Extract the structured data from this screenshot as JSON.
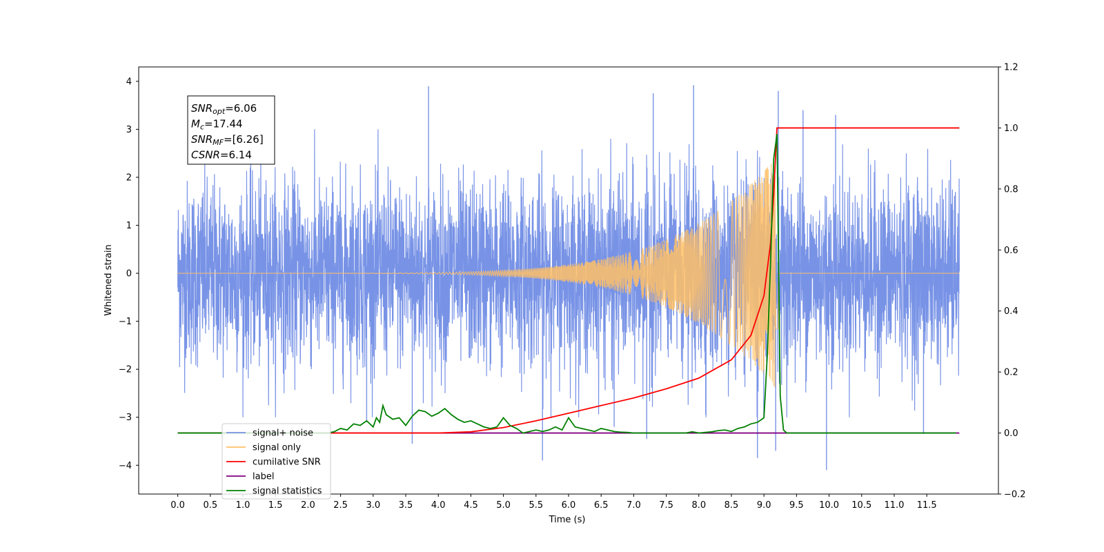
{
  "chart_data": {
    "type": "line",
    "xlabel": "Time (s)",
    "ylabel": "Whitened strain",
    "ylabel_right": "",
    "xlim": [
      -0.6,
      12.6
    ],
    "ylim": [
      -4.6,
      4.3
    ],
    "ylim_right": [
      -0.2,
      1.2
    ],
    "x_ticks": [
      0.0,
      0.5,
      1.0,
      1.5,
      2.0,
      2.5,
      3.0,
      3.5,
      4.0,
      4.5,
      5.0,
      5.5,
      6.0,
      6.5,
      7.0,
      7.5,
      8.0,
      8.5,
      9.0,
      9.5,
      10.0,
      10.5,
      11.0,
      11.5
    ],
    "x_tick_labels": [
      "0.0",
      "0.5",
      "1.0",
      "1.5",
      "2.0",
      "2.5",
      "3.0",
      "3.5",
      "4.0",
      "4.5",
      "5.0",
      "5.5",
      "6.0",
      "6.5",
      "7.0",
      "7.5",
      "8.0",
      "8.5",
      "9.0",
      "9.5",
      "10.0",
      "10.5",
      "11.0",
      "11.5"
    ],
    "y_ticks": [
      4,
      3,
      2,
      1,
      0,
      -1,
      -2,
      -3,
      -4
    ],
    "y_tick_labels": [
      "4",
      "3",
      "2",
      "1",
      "0",
      "−1",
      "−2",
      "−3",
      "−4"
    ],
    "y_right_ticks": [
      1.2,
      1.0,
      0.8,
      0.6,
      0.4,
      0.2,
      0.0,
      -0.2
    ],
    "y_right_tick_labels": [
      "1.2",
      "1.0",
      "0.8",
      "0.6",
      "0.4",
      "0.2",
      "0.0",
      "−0.2"
    ],
    "grid": false,
    "legend_position": "lower-left",
    "annotation": [
      {
        "main": "SNR",
        "sub": "opt",
        "rest": "=6.06"
      },
      {
        "main": "M",
        "sub": "c",
        "rest": "=17.44"
      },
      {
        "main": "SNR",
        "sub": "MF",
        "rest": "=[6.26]"
      },
      {
        "main": "CSNR",
        "sub": "",
        "rest": "=6.14"
      }
    ],
    "series": [
      {
        "name": "signal+ noise",
        "color": "#7893e6",
        "axis": "left",
        "x_range": [
          0.0,
          12.0
        ],
        "envelope_typical": 1.9,
        "spikes": [
          {
            "x": 3.85,
            "y": 3.9
          },
          {
            "x": 7.92,
            "y": 3.92
          },
          {
            "x": 7.3,
            "y": 3.75
          },
          {
            "x": 9.22,
            "y": 3.8
          },
          {
            "x": 9.6,
            "y": 3.4
          },
          {
            "x": 10.1,
            "y": 3.3
          },
          {
            "x": 5.6,
            "y": -3.9
          },
          {
            "x": 9.96,
            "y": -4.1
          },
          {
            "x": 8.9,
            "y": -3.85
          },
          {
            "x": 3.6,
            "y": -3.55
          },
          {
            "x": 7.2,
            "y": -3.45
          },
          {
            "x": 11.45,
            "y": -3.35
          },
          {
            "x": 9.18,
            "y": -3.7
          },
          {
            "x": 6.7,
            "y": -3.2
          },
          {
            "x": 2.9,
            "y": -3.1
          }
        ]
      },
      {
        "name": "signal only",
        "color": "#ffbf66",
        "axis": "left",
        "inspiral": {
          "t_start": 0.0,
          "t_merger": 9.18,
          "t_end": 12.0,
          "peak_amplitude": 2.4,
          "merger_dip": -1.15
        }
      },
      {
        "name": "cumilative SNR",
        "color": "#ff0000",
        "axis": "right",
        "x": [
          0.0,
          4.0,
          4.5,
          5.0,
          5.5,
          6.0,
          6.5,
          7.0,
          7.5,
          8.0,
          8.5,
          8.8,
          9.0,
          9.1,
          9.15,
          9.18,
          9.2,
          12.0
        ],
        "y": [
          0.0,
          0.0,
          0.004,
          0.018,
          0.04,
          0.065,
          0.09,
          0.115,
          0.145,
          0.18,
          0.24,
          0.32,
          0.45,
          0.62,
          0.78,
          0.92,
          1.0,
          1.0
        ]
      },
      {
        "name": "label",
        "color": "#7f007f",
        "axis": "right",
        "x": [
          0.0,
          9.3,
          12.0
        ],
        "y": [
          0.0,
          0.0,
          0.0
        ]
      },
      {
        "name": "signal statistics",
        "color": "#008000",
        "axis": "right",
        "x": [
          0.0,
          2.3,
          2.4,
          2.5,
          2.6,
          2.7,
          2.8,
          2.9,
          3.0,
          3.05,
          3.1,
          3.15,
          3.2,
          3.3,
          3.4,
          3.5,
          3.6,
          3.7,
          3.8,
          3.9,
          4.0,
          4.1,
          4.2,
          4.3,
          4.4,
          4.5,
          4.6,
          4.7,
          4.8,
          4.9,
          5.0,
          5.1,
          5.2,
          5.3,
          5.4,
          5.5,
          5.6,
          5.7,
          5.8,
          5.9,
          6.0,
          6.1,
          6.2,
          6.3,
          6.4,
          6.5,
          6.6,
          6.7,
          6.8,
          6.9,
          7.0,
          7.5,
          7.8,
          7.9,
          8.0,
          8.1,
          8.2,
          8.3,
          8.4,
          8.5,
          8.6,
          8.7,
          8.8,
          8.9,
          9.0,
          9.05,
          9.1,
          9.15,
          9.2,
          9.25,
          9.3,
          9.35,
          9.5,
          11.95
        ],
        "y": [
          0.0,
          0.0,
          0.004,
          0.015,
          0.01,
          0.03,
          0.025,
          0.04,
          0.02,
          0.05,
          0.035,
          0.09,
          0.06,
          0.045,
          0.05,
          0.025,
          0.055,
          0.075,
          0.07,
          0.055,
          0.065,
          0.08,
          0.06,
          0.045,
          0.035,
          0.04,
          0.03,
          0.02,
          0.015,
          0.02,
          0.05,
          0.025,
          0.015,
          0.0,
          0.005,
          0.01,
          0.005,
          0.01,
          0.02,
          0.01,
          0.05,
          0.02,
          0.015,
          0.01,
          0.005,
          0.015,
          0.01,
          0.005,
          0.003,
          0.002,
          0.0,
          0.0,
          0.0,
          0.004,
          0.0,
          0.002,
          0.004,
          0.008,
          0.01,
          0.005,
          0.015,
          0.02,
          0.03,
          0.035,
          0.05,
          0.25,
          0.55,
          0.9,
          0.98,
          0.12,
          0.01,
          0.0,
          0.0,
          0.0
        ]
      }
    ]
  }
}
